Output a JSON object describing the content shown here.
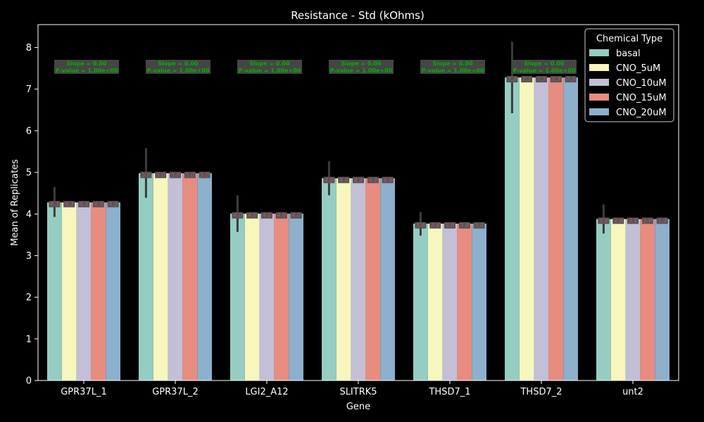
{
  "chart_data": {
    "type": "bar",
    "title": "Resistance - Std (kOhms)",
    "xlabel": "Gene",
    "ylabel": "Mean of Replicates",
    "ylim": [
      0,
      8.55
    ],
    "yticks": [
      0,
      1,
      2,
      3,
      4,
      5,
      6,
      7,
      8
    ],
    "grid": false,
    "categories": [
      "GPR37L_1",
      "GPR37L_2",
      "LGI2_A12",
      "SLITRK5",
      "THSD7_1",
      "THSD7_2",
      "unt2"
    ],
    "legend": {
      "title": "Chemical Type",
      "position": "top-right"
    },
    "series": [
      {
        "name": "basal",
        "color": "#96cdc3",
        "values": [
          4.28,
          4.98,
          4.01,
          4.86,
          3.77,
          7.28,
          3.88
        ]
      },
      {
        "name": "CNO_5uM",
        "color": "#f7f7bd",
        "values": [
          4.28,
          4.98,
          4.01,
          4.86,
          3.77,
          7.28,
          3.88
        ]
      },
      {
        "name": "CNO_10uM",
        "color": "#c3bfd6",
        "values": [
          4.28,
          4.98,
          4.01,
          4.86,
          3.77,
          7.28,
          3.88
        ]
      },
      {
        "name": "CNO_15uM",
        "color": "#e88c80",
        "values": [
          4.28,
          4.98,
          4.01,
          4.86,
          3.77,
          7.28,
          3.88
        ]
      },
      {
        "name": "CNO_20uM",
        "color": "#8db0cc",
        "values": [
          4.28,
          4.98,
          4.01,
          4.86,
          3.77,
          7.28,
          3.88
        ]
      }
    ],
    "data_labels": [
      "4.3",
      "5.0",
      "4.0",
      "4.9",
      "3.8",
      "7.3",
      "3.9"
    ],
    "error_bars_basal": [
      [
        3.93,
        4.65
      ],
      [
        4.39,
        5.58
      ],
      [
        3.57,
        4.45
      ],
      [
        4.45,
        5.27
      ],
      [
        3.48,
        4.05
      ],
      [
        6.42,
        8.14
      ],
      [
        3.53,
        4.23
      ]
    ],
    "annotations": [
      "Slope = 0.00\nP-value = 1.00e+00",
      "Slope = 0.00\nP-value = 1.00e+00",
      "Slope = 0.00\nP-value = 1.00e+00",
      "Slope = 0.00\nP-value = 1.00e+00",
      "Slope = 0.00\nP-value = 1.00e+00",
      "Slope = 0.00\nP-value = 1.00e+00",
      "Slope = 0.00\nP-value = 1.00e+00"
    ],
    "colors": {
      "background": "#000000",
      "axes": "#ffffff",
      "error_bar": "#3c3c3c",
      "annotation_text": "#00b000",
      "annotation_box": "#454545",
      "data_label_text": "#c0506a",
      "data_label_box": "#555555"
    }
  }
}
